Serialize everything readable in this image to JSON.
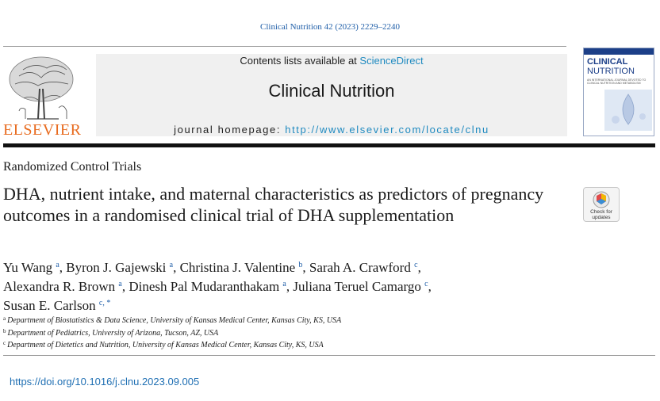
{
  "citation": "Clinical Nutrition 42 (2023) 2229–2240",
  "publisher": {
    "name": "ELSEVIER"
  },
  "header": {
    "contents_prefix": "Contents lists available at ",
    "contents_link": "ScienceDirect",
    "journal_name": "Clinical Nutrition",
    "homepage_prefix": "journal homepage: ",
    "homepage_url": "http://www.elsevier.com/locate/clnu"
  },
  "cover": {
    "title_line1": "CLINICAL",
    "title_line2": "NUTRITION",
    "subtitle": "AN INTERNATIONAL JOURNAL DEVOTED TO CLINICAL NUTRITION AND METABOLISM"
  },
  "crossmark": {
    "label": "Check for updates"
  },
  "article": {
    "section": "Randomized Control Trials",
    "title": "DHA, nutrient intake, and maternal characteristics as predictors of pregnancy outcomes in a randomised clinical trial of DHA supplementation",
    "authors": [
      {
        "name": "Yu Wang",
        "sup": "a",
        "sep": ", "
      },
      {
        "name": "Byron J. Gajewski",
        "sup": "a",
        "sep": ", "
      },
      {
        "name": "Christina J. Valentine",
        "sup": "b",
        "sep": ", "
      },
      {
        "name": "Sarah A. Crawford",
        "sup": "c",
        "sep": ","
      },
      {
        "name": "Alexandra R. Brown",
        "sup": "a",
        "sep": ", "
      },
      {
        "name": "Dinesh Pal Mudaranthakam",
        "sup": "a",
        "sep": ", "
      },
      {
        "name": "Juliana Teruel Camargo",
        "sup": "c",
        "sep": ","
      },
      {
        "name": "Susan E. Carlson",
        "sup": "c, *",
        "sep": ""
      }
    ],
    "affiliations": [
      {
        "key": "a",
        "text": "Department of Biostatistics & Data Science, University of Kansas Medical Center, Kansas City, KS, USA"
      },
      {
        "key": "b",
        "text": "Department of Pediatrics, University of Arizona, Tucson, AZ, USA"
      },
      {
        "key": "c",
        "text": "Department of Dietetics and Nutrition, University of Kansas Medical Center, Kansas City, KS, USA"
      }
    ],
    "doi": "https://doi.org/10.1016/j.clnu.2023.09.005"
  },
  "colors": {
    "link_blue": "#1f8ac0",
    "citation_blue": "#1f5ea8",
    "elsevier_orange": "#e86b1f",
    "cover_navy": "#1c3f88"
  }
}
